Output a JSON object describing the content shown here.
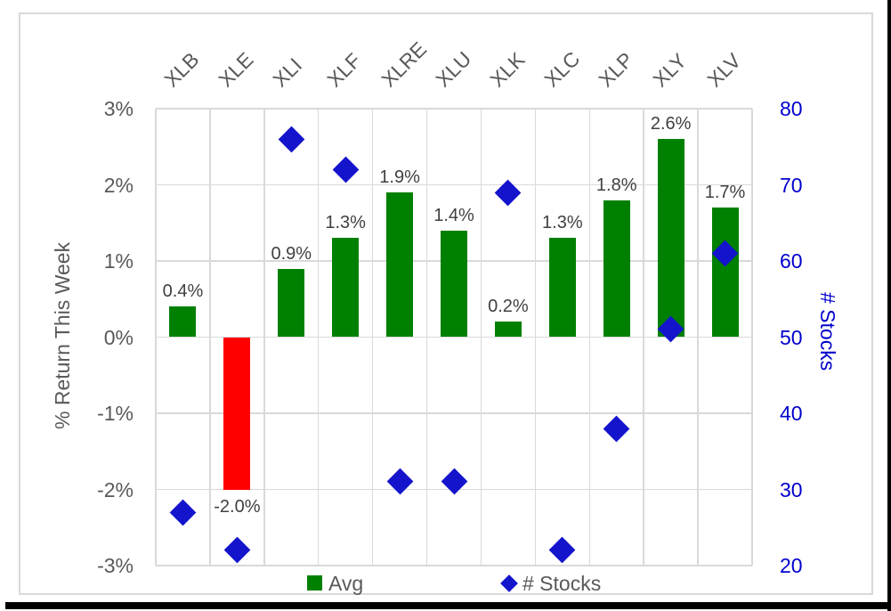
{
  "chart": {
    "left_axis": {
      "title": "% Return This Week",
      "tick_labels": [
        "3%",
        "2%",
        "1%",
        "0%",
        "-1%",
        "-2%",
        "-3%"
      ],
      "text_color": "#595959"
    },
    "right_axis": {
      "title": "# Stocks",
      "tick_labels": [
        "80",
        "70",
        "60",
        "50",
        "40",
        "30",
        "20"
      ],
      "text_color": "#0000CC"
    },
    "legend": [
      {
        "label": "Avg",
        "marker": "square",
        "color": "#008000"
      },
      {
        "label": "# Stocks",
        "marker": "diamond",
        "color": "#1414CC"
      }
    ],
    "colors": {
      "bar_positive": "#008000",
      "bar_negative": "#FF0000",
      "diamond": "#1414CC",
      "gridline": "#D9D9D9",
      "frame_border": "#D9D9D9",
      "data_label": "#404040"
    }
  },
  "chart_data": {
    "type": "combo",
    "subtypes": [
      "bar",
      "scatter"
    ],
    "categories": [
      "XLB",
      "XLE",
      "XLI",
      "XLF",
      "XLRE",
      "XLU",
      "XLK",
      "XLC",
      "XLP",
      "XLY",
      "XLV"
    ],
    "series": [
      {
        "name": "Avg",
        "type": "bar",
        "axis": "left",
        "values": [
          0.4,
          -2.0,
          0.9,
          1.3,
          1.9,
          1.4,
          0.2,
          1.3,
          1.8,
          2.6,
          1.7
        ],
        "data_labels": [
          "0.4%",
          "-2.0%",
          "0.9%",
          "1.3%",
          "1.9%",
          "1.4%",
          "0.2%",
          "1.3%",
          "1.8%",
          "2.6%",
          "1.7%"
        ]
      },
      {
        "name": "# Stocks",
        "type": "scatter",
        "marker": "diamond",
        "axis": "right",
        "values": [
          27,
          22,
          76,
          72,
          31,
          31,
          69,
          22,
          38,
          51,
          61
        ]
      }
    ],
    "left_ylabel": "% Return This Week",
    "right_ylabel": "# Stocks",
    "left_ylim": [
      -3,
      3
    ],
    "right_ylim": [
      20,
      80
    ],
    "left_tick_step_pct": 1,
    "right_tick_step": 10,
    "grid": true,
    "legend_position": "bottom"
  }
}
